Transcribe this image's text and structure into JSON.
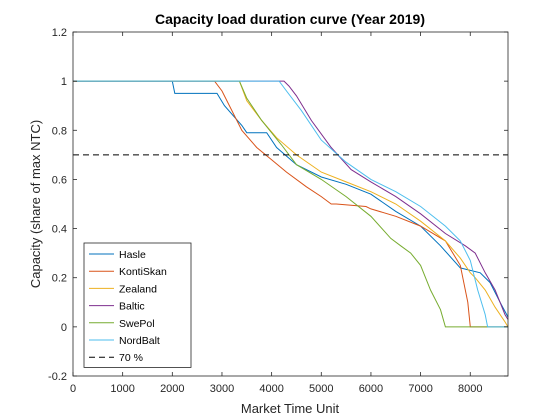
{
  "chart_data": {
    "type": "line",
    "title": "Capacity load duration curve (Year 2019)",
    "xlabel": "Market Time Unit",
    "ylabel": "Capacity (share of max NTC)",
    "xlim": [
      0,
      8760
    ],
    "ylim": [
      -0.2,
      1.2
    ],
    "xticks": [
      0,
      1000,
      2000,
      3000,
      4000,
      5000,
      6000,
      7000,
      8000
    ],
    "xtick_labels": [
      "0",
      "1000",
      "2000",
      "3000",
      "4000",
      "5000",
      "6000",
      "7000",
      "8000"
    ],
    "yticks": [
      -0.2,
      0,
      0.2,
      0.4,
      0.6,
      0.8,
      1,
      1.2
    ],
    "ytick_labels": [
      "-0.2",
      "0",
      "0.2",
      "0.4",
      "0.6",
      "0.8",
      "1",
      "1.2"
    ],
    "grid": false,
    "legend_position": "bottom-left",
    "series": [
      {
        "name": "Hasle",
        "color": "#0072BD",
        "x": [
          0,
          2000,
          2050,
          2900,
          3050,
          3400,
          3500,
          3900,
          4100,
          4500,
          5000,
          5500,
          6000,
          6500,
          7000,
          7400,
          7800,
          8200,
          8400,
          8600,
          8760
        ],
        "y": [
          1,
          1,
          0.95,
          0.95,
          0.9,
          0.82,
          0.79,
          0.79,
          0.73,
          0.66,
          0.61,
          0.58,
          0.54,
          0.47,
          0.41,
          0.33,
          0.24,
          0.22,
          0.18,
          0.1,
          0.04
        ]
      },
      {
        "name": "KontiSkan",
        "color": "#D95319",
        "x": [
          0,
          2850,
          3000,
          3400,
          3700,
          4000,
          4300,
          4700,
          5000,
          5200,
          5300,
          5900,
          6000,
          6500,
          7000,
          7500,
          7800,
          7950,
          8000,
          8760
        ],
        "y": [
          1,
          1,
          0.96,
          0.8,
          0.73,
          0.68,
          0.63,
          0.57,
          0.53,
          0.5,
          0.5,
          0.49,
          0.48,
          0.45,
          0.41,
          0.35,
          0.25,
          0.1,
          0,
          0
        ]
      },
      {
        "name": "Zealand",
        "color": "#EDB120",
        "x": [
          0,
          3350,
          3500,
          3800,
          4100,
          4500,
          5000,
          5500,
          6000,
          6500,
          7000,
          7500,
          7800,
          8000,
          8100,
          8300,
          8500,
          8700,
          8760
        ],
        "y": [
          1,
          1,
          0.92,
          0.84,
          0.77,
          0.7,
          0.63,
          0.59,
          0.55,
          0.5,
          0.43,
          0.35,
          0.28,
          0.22,
          0.2,
          0.15,
          0.08,
          0.02,
          0
        ]
      },
      {
        "name": "Baltic",
        "color": "#7E2F8E",
        "x": [
          0,
          4250,
          4350,
          4500,
          4800,
          5200,
          5600,
          6000,
          6500,
          7000,
          7500,
          7900,
          8100,
          8300,
          8500,
          8700,
          8760
        ],
        "y": [
          1,
          1,
          0.98,
          0.94,
          0.84,
          0.73,
          0.64,
          0.59,
          0.53,
          0.46,
          0.38,
          0.33,
          0.3,
          0.22,
          0.15,
          0.05,
          0.03
        ]
      },
      {
        "name": "SwePol",
        "color": "#77AC30",
        "x": [
          0,
          3350,
          3500,
          3800,
          4200,
          4500,
          5000,
          5500,
          6000,
          6400,
          6600,
          6800,
          7000,
          7200,
          7400,
          7500,
          8760
        ],
        "y": [
          1,
          1,
          0.93,
          0.84,
          0.74,
          0.66,
          0.6,
          0.53,
          0.45,
          0.36,
          0.33,
          0.3,
          0.25,
          0.15,
          0.07,
          0,
          0
        ]
      },
      {
        "name": "NordBalt",
        "color": "#4DBEEE",
        "x": [
          0,
          4150,
          4300,
          4600,
          5000,
          5500,
          6000,
          6500,
          7000,
          7500,
          7800,
          8000,
          8150,
          8300,
          8350,
          8760
        ],
        "y": [
          1,
          1,
          0.96,
          0.88,
          0.76,
          0.67,
          0.6,
          0.55,
          0.49,
          0.41,
          0.35,
          0.27,
          0.15,
          0.05,
          0,
          0
        ]
      },
      {
        "name": "70 %",
        "color": "#000000",
        "dash": "6,4",
        "x": [
          0,
          8760
        ],
        "y": [
          0.7,
          0.7
        ]
      }
    ]
  }
}
